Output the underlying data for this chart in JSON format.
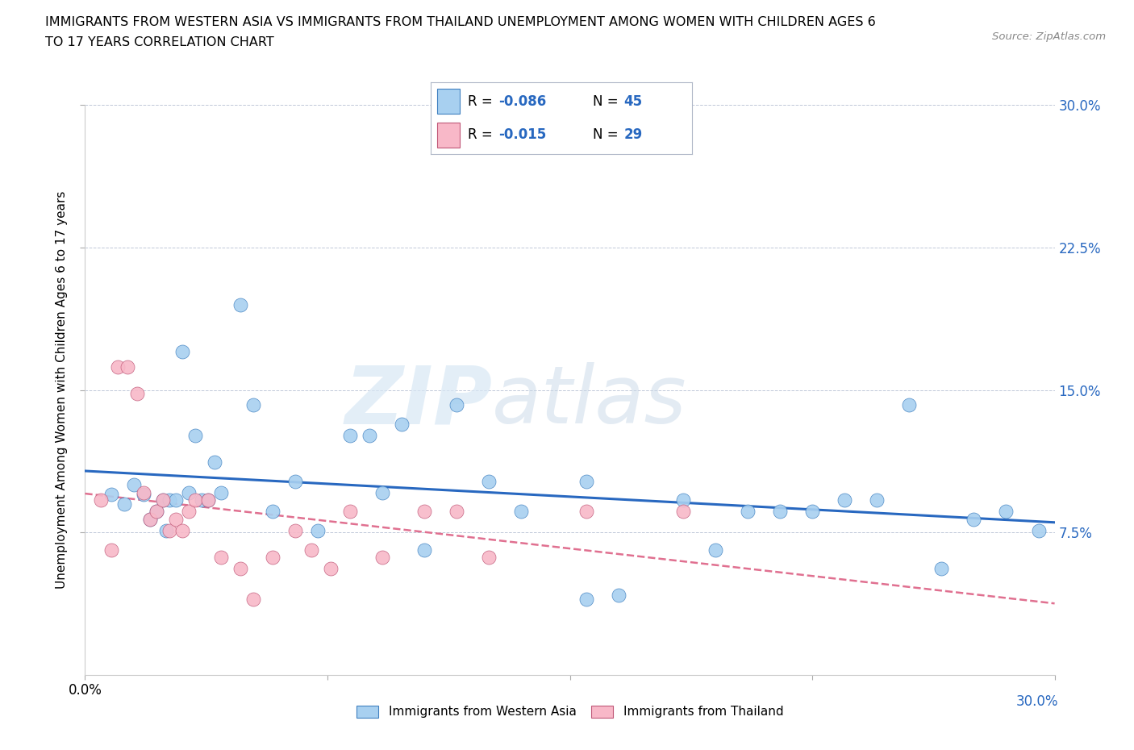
{
  "title_line1": "IMMIGRANTS FROM WESTERN ASIA VS IMMIGRANTS FROM THAILAND UNEMPLOYMENT AMONG WOMEN WITH CHILDREN AGES 6",
  "title_line2": "TO 17 YEARS CORRELATION CHART",
  "source": "Source: ZipAtlas.com",
  "ylabel": "Unemployment Among Women with Children Ages 6 to 17 years",
  "xlim": [
    0.0,
    0.3
  ],
  "ylim": [
    0.0,
    0.3
  ],
  "xtick_vals": [
    0.0,
    0.075,
    0.15,
    0.225,
    0.3
  ],
  "xtick_labels_bottom": [
    "0.0%",
    "",
    "",
    "",
    ""
  ],
  "ytick_vals": [
    0.075,
    0.15,
    0.225,
    0.3
  ],
  "ytick_labels_right": [
    "7.5%",
    "15.0%",
    "22.5%",
    "30.0%"
  ],
  "color_western_fill": "#A8D0F0",
  "color_western_edge": "#4080C0",
  "color_thailand_fill": "#F8B8C8",
  "color_thailand_edge": "#C05878",
  "color_line_western": "#2868C0",
  "color_line_thailand": "#E07090",
  "watermark_zip": "ZIP",
  "watermark_atlas": "atlas",
  "label_western": "Immigrants from Western Asia",
  "label_thailand": "Immigrants from Thailand",
  "r_western": "-0.086",
  "n_western": "45",
  "r_thailand": "-0.015",
  "n_thailand": "29",
  "western_asia_x": [
    0.008,
    0.012,
    0.015,
    0.018,
    0.02,
    0.022,
    0.024,
    0.025,
    0.026,
    0.028,
    0.03,
    0.032,
    0.034,
    0.036,
    0.038,
    0.04,
    0.042,
    0.048,
    0.052,
    0.058,
    0.065,
    0.072,
    0.082,
    0.088,
    0.092,
    0.098,
    0.105,
    0.115,
    0.125,
    0.135,
    0.155,
    0.165,
    0.185,
    0.195,
    0.205,
    0.215,
    0.225,
    0.235,
    0.245,
    0.255,
    0.265,
    0.275,
    0.285,
    0.295,
    0.155
  ],
  "western_asia_y": [
    0.095,
    0.09,
    0.1,
    0.095,
    0.082,
    0.086,
    0.092,
    0.076,
    0.092,
    0.092,
    0.17,
    0.096,
    0.126,
    0.092,
    0.092,
    0.112,
    0.096,
    0.195,
    0.142,
    0.086,
    0.102,
    0.076,
    0.126,
    0.126,
    0.096,
    0.132,
    0.066,
    0.142,
    0.102,
    0.086,
    0.04,
    0.042,
    0.092,
    0.066,
    0.086,
    0.086,
    0.086,
    0.092,
    0.092,
    0.142,
    0.056,
    0.082,
    0.086,
    0.076,
    0.102
  ],
  "thailand_x": [
    0.005,
    0.008,
    0.01,
    0.013,
    0.016,
    0.018,
    0.02,
    0.022,
    0.024,
    0.026,
    0.028,
    0.03,
    0.032,
    0.034,
    0.038,
    0.042,
    0.048,
    0.052,
    0.058,
    0.065,
    0.07,
    0.076,
    0.082,
    0.092,
    0.105,
    0.115,
    0.125,
    0.155,
    0.185
  ],
  "thailand_y": [
    0.092,
    0.066,
    0.162,
    0.162,
    0.148,
    0.096,
    0.082,
    0.086,
    0.092,
    0.076,
    0.082,
    0.076,
    0.086,
    0.092,
    0.092,
    0.062,
    0.056,
    0.04,
    0.062,
    0.076,
    0.066,
    0.056,
    0.086,
    0.062,
    0.086,
    0.086,
    0.062,
    0.086,
    0.086
  ]
}
